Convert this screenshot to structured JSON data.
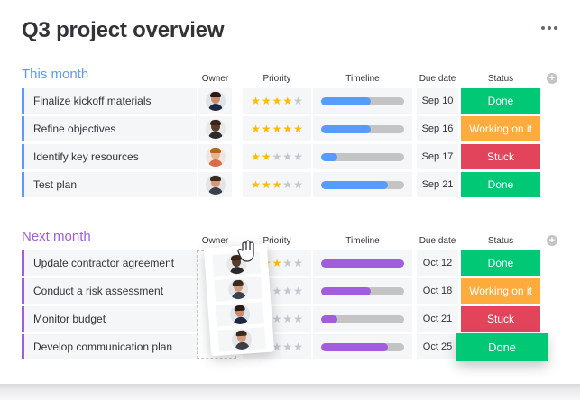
{
  "board": {
    "title": "Q3 project overview",
    "menu_icon": "more-dots-icon"
  },
  "columns": {
    "owner": "Owner",
    "priority": "Priority",
    "timeline": "Timeline",
    "due_date": "Due date",
    "status": "Status",
    "add_icon": "plus-circle-icon"
  },
  "colors": {
    "this_month": "#579bfc",
    "next_month": "#a25ddc",
    "done": "#00c875",
    "working": "#fdab3d",
    "stuck": "#e2445c",
    "star": "#fdbc00"
  },
  "groups": [
    {
      "title": "This month",
      "color": "#579bfc",
      "rows": [
        {
          "item": "Finalize kickoff materials",
          "owner": "avatar-woman-dark-hair",
          "priority": 4,
          "timeline": 0.6,
          "due": "Sep 10",
          "status": "Done",
          "status_color": "#00c875"
        },
        {
          "item": "Refine objectives",
          "owner": "avatar-man-bald",
          "priority": 5,
          "timeline": 0.6,
          "due": "Sep 16",
          "status": "Working on it",
          "status_color": "#fdab3d"
        },
        {
          "item": "Identify key resources",
          "owner": "avatar-woman-curly-hair",
          "priority": 2,
          "timeline": 0.2,
          "due": "Sep 17",
          "status": "Stuck",
          "status_color": "#e2445c"
        },
        {
          "item": "Test plan",
          "owner": "avatar-man-beard",
          "priority": 3,
          "timeline": 0.8,
          "due": "Sep 21",
          "status": "Done",
          "status_color": "#00c875"
        }
      ]
    },
    {
      "title": "Next month",
      "color": "#a25ddc",
      "rows": [
        {
          "item": "Update contractor agreement",
          "owner": "",
          "priority": 3,
          "timeline": 1.0,
          "due": "Oct 12",
          "status": "Done",
          "status_color": "#00c875"
        },
        {
          "item": "Conduct a risk assessment",
          "owner": "",
          "priority": 2,
          "timeline": 0.6,
          "due": "Oct 18",
          "status": "Working on it",
          "status_color": "#fdab3d"
        },
        {
          "item": "Monitor budget",
          "owner": "",
          "priority": 2,
          "timeline": 0.2,
          "due": "Oct 21",
          "status": "Stuck",
          "status_color": "#e2445c"
        },
        {
          "item": "Develop communication plan",
          "owner": "",
          "priority": 2,
          "timeline": 0.8,
          "due": "Oct 25",
          "status": "",
          "status_color": "#f5f6f8"
        }
      ]
    }
  ],
  "drag": {
    "dragged_avatars": [
      "avatar-man-bald",
      "avatar-man-beard",
      "avatar-woman-dark-hair",
      "avatar-man-beard"
    ],
    "cursor_icon": "grab-hand-icon",
    "floating_status": "Done"
  }
}
